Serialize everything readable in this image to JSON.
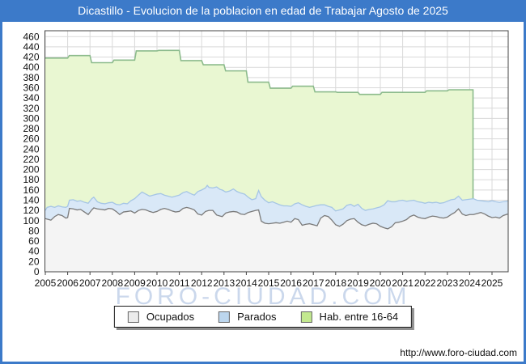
{
  "window": {
    "title": "Dicastillo - Evolucion de la poblacion en edad de Trabajar Agosto de 2025"
  },
  "watermark": "FORO-CIUDAD.COM",
  "footer": {
    "url": "http://www.foro-ciudad.com"
  },
  "legend": {
    "items": [
      {
        "label": "Ocupados",
        "color": "#ececec",
        "border": "#666666"
      },
      {
        "label": "Parados",
        "color": "#bcd6ee",
        "border": "#666666"
      },
      {
        "label": "Hab. entre 16-64",
        "color": "#c3e98f",
        "border": "#666666"
      }
    ]
  },
  "colors": {
    "frame_blue": "#3c7ac9",
    "grid": "#d9d9d9",
    "plot_border": "#444444",
    "green_line": "#8cbb8c",
    "green_fill": "#e9f7d2",
    "blue_line": "#a5c5e5",
    "blue_fill": "#d9e8f7",
    "gray_line": "#7a7a7a",
    "gray_fill": "#f4f4f4",
    "tick_text": "#111111"
  },
  "chart_data": {
    "type": "area",
    "title": "Dicastillo - Evolucion de la poblacion en edad de Trabajar Agosto de 2025",
    "xlabel": "",
    "ylabel": "",
    "ylim": [
      0,
      460
    ],
    "grid": true,
    "legend_position": "bottom",
    "x_ticks": [
      2005,
      2006,
      2007,
      2008,
      2009,
      2010,
      2011,
      2012,
      2013,
      2014,
      2015,
      2016,
      2017,
      2018,
      2019,
      2020,
      2021,
      2022,
      2023,
      2024,
      2025
    ],
    "y_ticks": [
      0,
      20,
      40,
      60,
      80,
      100,
      120,
      140,
      160,
      180,
      200,
      220,
      240,
      260,
      280,
      300,
      320,
      340,
      360,
      380,
      400,
      420,
      440,
      460
    ],
    "note": "Parados is drawn stacked on top of Ocupados; 'activos_top' is the upper edge of the Parados band (Ocupados+Parados). 'Hab. entre 16-64' is annual step data ending early 2024.",
    "hab_16_64": {
      "name": "Hab. entre 16-64",
      "years": [
        2005,
        2006,
        2007,
        2008,
        2009,
        2010,
        2011,
        2012,
        2013,
        2014,
        2015,
        2016,
        2017,
        2018,
        2019,
        2020,
        2021,
        2022,
        2023,
        2024
      ],
      "values": [
        418,
        423,
        409,
        414,
        432,
        433,
        413,
        405,
        393,
        371,
        359,
        363,
        352,
        351,
        347,
        351,
        351,
        354,
        356,
        356
      ],
      "end_t": 2024.15
    },
    "employment": {
      "t": [
        2005.0,
        2005.08,
        2005.25,
        2005.42,
        2005.58,
        2005.75,
        2005.92,
        2006.0,
        2006.08,
        2006.25,
        2006.42,
        2006.58,
        2006.75,
        2006.92,
        2007.08,
        2007.17,
        2007.33,
        2007.5,
        2007.67,
        2007.83,
        2008.0,
        2008.17,
        2008.33,
        2008.5,
        2008.67,
        2008.83,
        2009.0,
        2009.17,
        2009.33,
        2009.5,
        2009.67,
        2009.83,
        2010.0,
        2010.17,
        2010.33,
        2010.5,
        2010.67,
        2010.83,
        2011.0,
        2011.17,
        2011.33,
        2011.5,
        2011.67,
        2011.83,
        2012.0,
        2012.17,
        2012.25,
        2012.33,
        2012.5,
        2012.67,
        2012.83,
        2012.92,
        2013.08,
        2013.25,
        2013.42,
        2013.58,
        2013.75,
        2013.92,
        2014.08,
        2014.25,
        2014.42,
        2014.55,
        2014.67,
        2014.83,
        2015.0,
        2015.17,
        2015.33,
        2015.5,
        2015.67,
        2015.83,
        2016.0,
        2016.17,
        2016.33,
        2016.5,
        2016.67,
        2016.83,
        2017.0,
        2017.17,
        2017.33,
        2017.5,
        2017.67,
        2017.83,
        2018.0,
        2018.17,
        2018.33,
        2018.5,
        2018.67,
        2018.83,
        2019.0,
        2019.17,
        2019.33,
        2019.5,
        2019.67,
        2019.83,
        2020.0,
        2020.17,
        2020.33,
        2020.5,
        2020.67,
        2020.83,
        2021.0,
        2021.17,
        2021.33,
        2021.5,
        2021.67,
        2021.83,
        2022.0,
        2022.17,
        2022.33,
        2022.5,
        2022.67,
        2022.83,
        2023.0,
        2023.17,
        2023.33,
        2023.5,
        2023.67,
        2023.83,
        2024.0,
        2024.17,
        2024.33,
        2024.5,
        2024.67,
        2024.83,
        2025.0,
        2025.17,
        2025.33,
        2025.5,
        2025.7
      ],
      "ocupados": [
        104,
        103,
        101,
        108,
        112,
        110,
        105,
        106,
        124,
        123,
        121,
        122,
        117,
        112,
        121,
        125,
        123,
        122,
        121,
        124,
        123,
        118,
        112,
        117,
        118,
        119,
        115,
        120,
        122,
        121,
        118,
        116,
        118,
        122,
        124,
        122,
        119,
        117,
        118,
        124,
        126,
        124,
        121,
        113,
        111,
        118,
        119,
        120,
        120,
        111,
        109,
        108,
        115,
        117,
        118,
        117,
        113,
        112,
        116,
        118,
        120,
        121,
        99,
        95,
        94,
        95,
        96,
        95,
        97,
        99,
        97,
        104,
        102,
        91,
        93,
        94,
        92,
        90,
        105,
        110,
        108,
        101,
        92,
        89,
        93,
        100,
        103,
        104,
        97,
        92,
        90,
        93,
        95,
        94,
        89,
        86,
        84,
        88,
        96,
        97,
        99,
        102,
        108,
        111,
        107,
        105,
        104,
        107,
        109,
        108,
        106,
        105,
        107,
        112,
        116,
        123,
        113,
        110,
        112,
        112,
        114,
        116,
        113,
        109,
        106,
        107,
        105,
        110,
        113
      ],
      "activos_top": [
        120,
        126,
        128,
        126,
        129,
        127,
        126,
        128,
        140,
        141,
        138,
        139,
        136,
        134,
        143,
        146,
        137,
        134,
        133,
        135,
        136,
        132,
        131,
        134,
        133,
        139,
        143,
        150,
        156,
        152,
        148,
        150,
        152,
        153,
        150,
        148,
        146,
        148,
        150,
        155,
        157,
        153,
        150,
        157,
        160,
        164,
        169,
        165,
        164,
        166,
        161,
        160,
        156,
        158,
        162,
        157,
        154,
        152,
        146,
        141,
        143,
        159,
        147,
        140,
        135,
        137,
        134,
        131,
        129,
        129,
        128,
        133,
        135,
        131,
        128,
        126,
        128,
        130,
        131,
        131,
        128,
        126,
        119,
        121,
        123,
        130,
        132,
        128,
        132,
        124,
        120,
        122,
        123,
        125,
        127,
        131,
        139,
        137,
        137,
        139,
        140,
        138,
        139,
        140,
        137,
        136,
        134,
        136,
        135,
        136,
        134,
        135,
        138,
        141,
        142,
        148,
        140,
        141,
        142,
        143,
        140,
        139,
        138,
        137,
        139,
        137,
        136,
        137,
        138
      ]
    }
  }
}
